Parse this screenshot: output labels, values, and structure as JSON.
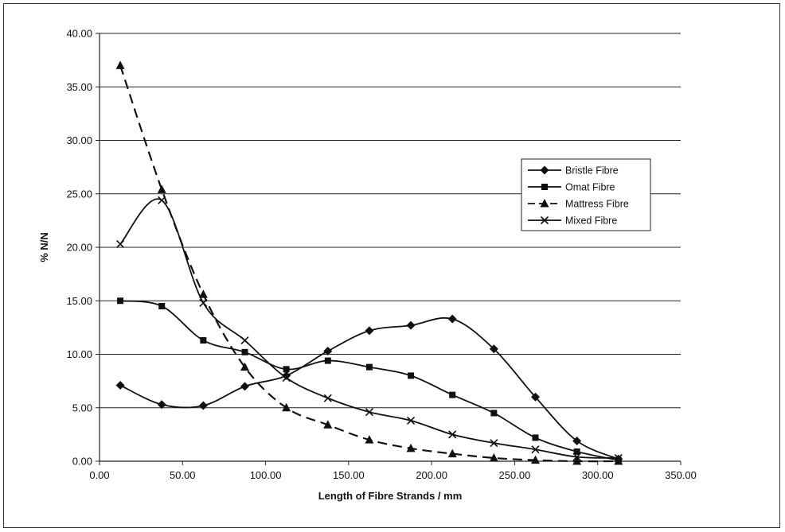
{
  "chart_data": {
    "type": "line",
    "title": "",
    "xlabel": "Length of Fibre Strands / mm",
    "ylabel": "% N/N",
    "xlim": [
      0,
      350
    ],
    "ylim": [
      0,
      40
    ],
    "x_ticks": [
      "0.00",
      "50.00",
      "100.00",
      "150.00",
      "200.00",
      "250.00",
      "300.00",
      "350.00"
    ],
    "y_ticks": [
      "0.00",
      "5.00",
      "10.00",
      "15.00",
      "20.00",
      "25.00",
      "30.00",
      "35.00",
      "40.00"
    ],
    "grid": "horizontal",
    "legend_position": "right",
    "x": [
      12.5,
      37.5,
      62.5,
      87.5,
      112.5,
      137.5,
      162.5,
      187.5,
      212.5,
      237.5,
      262.5,
      287.5,
      312.5
    ],
    "series": [
      {
        "name": "Bristle Fibre",
        "marker": "diamond",
        "dash": "solid",
        "color": "#111111",
        "values": [
          7.1,
          5.3,
          5.2,
          7.0,
          8.0,
          10.3,
          12.2,
          12.7,
          13.3,
          10.5,
          6.0,
          1.9,
          0.2
        ]
      },
      {
        "name": "Omat Fibre",
        "marker": "square",
        "dash": "solid",
        "color": "#111111",
        "values": [
          15.0,
          14.5,
          11.3,
          10.2,
          8.6,
          9.4,
          8.8,
          8.0,
          6.2,
          4.5,
          2.2,
          0.9,
          0.1
        ]
      },
      {
        "name": "Mattress Fibre",
        "marker": "triangle",
        "dash": "dashed",
        "color": "#111111",
        "values": [
          37.0,
          25.4,
          15.6,
          8.8,
          5.0,
          3.4,
          2.0,
          1.2,
          0.7,
          0.3,
          0.1,
          0.0,
          0.0
        ]
      },
      {
        "name": "Mixed Fibre",
        "marker": "x",
        "dash": "solid",
        "color": "#111111",
        "values": [
          20.3,
          24.4,
          14.8,
          11.3,
          7.8,
          5.9,
          4.6,
          3.8,
          2.5,
          1.7,
          1.1,
          0.4,
          0.3
        ]
      }
    ]
  }
}
